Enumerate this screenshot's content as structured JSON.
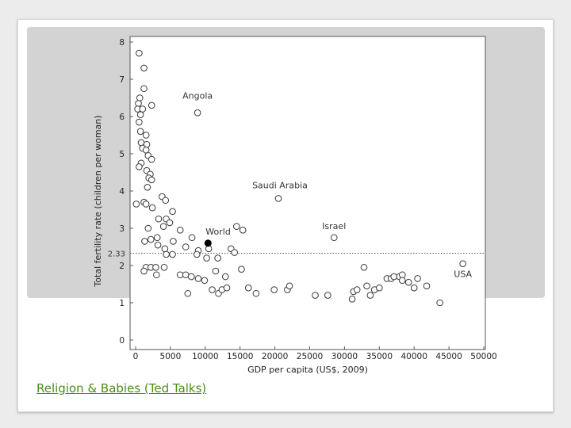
{
  "slide": {
    "link_text": "Religion & Babies (Ted Talks)"
  },
  "colors": {
    "background": "#ececec",
    "slide": "#ffffff",
    "shade": "#d3d3d3",
    "link": "#4a8c1c",
    "point_stroke": "#3a3a3a",
    "world_point": "#000000",
    "reference_line": "#555555"
  },
  "chart_data": {
    "type": "scatter",
    "title": "",
    "xlabel": "GDP per capita (US$, 2009)",
    "ylabel": "Total fertility rate (children per woman)",
    "xlim": [
      0,
      50000
    ],
    "ylim": [
      0,
      8
    ],
    "x_ticks": [
      0,
      5000,
      10000,
      15000,
      20000,
      25000,
      30000,
      35000,
      40000,
      45000,
      50000
    ],
    "y_ticks": [
      0,
      1,
      2,
      3,
      4,
      5,
      6,
      7,
      8
    ],
    "grid": false,
    "reference_line": {
      "y": 2.33,
      "label": "2.33",
      "style": "dotted"
    },
    "labeled_points": [
      {
        "label": "Angola",
        "x": 8900,
        "y": 6.1
      },
      {
        "label": "Saudi Arabia",
        "x": 20500,
        "y": 3.8
      },
      {
        "label": "Israel",
        "x": 28500,
        "y": 2.75
      },
      {
        "label": "USA",
        "x": 47000,
        "y": 2.05
      },
      {
        "label": "World",
        "x": 10400,
        "y": 2.6,
        "highlight": true
      }
    ],
    "points": [
      [
        500,
        7.7
      ],
      [
        1200,
        7.3
      ],
      [
        1200,
        6.75
      ],
      [
        600,
        6.5
      ],
      [
        400,
        6.35
      ],
      [
        2300,
        6.3
      ],
      [
        300,
        6.2
      ],
      [
        1000,
        6.2
      ],
      [
        700,
        6.05
      ],
      [
        500,
        5.85
      ],
      [
        700,
        5.6
      ],
      [
        1500,
        5.5
      ],
      [
        800,
        5.3
      ],
      [
        1600,
        5.25
      ],
      [
        1000,
        5.15
      ],
      [
        1500,
        5.1
      ],
      [
        1800,
        4.95
      ],
      [
        2300,
        4.85
      ],
      [
        800,
        4.75
      ],
      [
        500,
        4.65
      ],
      [
        1600,
        4.55
      ],
      [
        2100,
        4.45
      ],
      [
        1900,
        4.35
      ],
      [
        2300,
        4.3
      ],
      [
        1700,
        4.1
      ],
      [
        3800,
        3.85
      ],
      [
        4300,
        3.75
      ],
      [
        1200,
        3.7
      ],
      [
        100,
        3.65
      ],
      [
        1500,
        3.65
      ],
      [
        2400,
        3.55
      ],
      [
        5300,
        3.45
      ],
      [
        3300,
        3.25
      ],
      [
        4400,
        3.25
      ],
      [
        4900,
        3.15
      ],
      [
        4000,
        3.05
      ],
      [
        1800,
        3.0
      ],
      [
        6400,
        2.95
      ],
      [
        3100,
        2.75
      ],
      [
        2200,
        2.7
      ],
      [
        8100,
        2.75
      ],
      [
        1300,
        2.65
      ],
      [
        3200,
        2.55
      ],
      [
        5400,
        2.65
      ],
      [
        7200,
        2.5
      ],
      [
        4200,
        2.45
      ],
      [
        9000,
        2.4
      ],
      [
        10500,
        2.45
      ],
      [
        13700,
        2.45
      ],
      [
        14500,
        3.05
      ],
      [
        15400,
        2.95
      ],
      [
        4400,
        2.3
      ],
      [
        5300,
        2.3
      ],
      [
        8800,
        2.3
      ],
      [
        10200,
        2.2
      ],
      [
        11800,
        2.2
      ],
      [
        14200,
        2.35
      ],
      [
        1500,
        1.95
      ],
      [
        2200,
        1.95
      ],
      [
        2900,
        1.95
      ],
      [
        4100,
        1.95
      ],
      [
        1200,
        1.85
      ],
      [
        3000,
        1.75
      ],
      [
        6400,
        1.75
      ],
      [
        7200,
        1.75
      ],
      [
        8000,
        1.7
      ],
      [
        9000,
        1.65
      ],
      [
        9900,
        1.6
      ],
      [
        11500,
        1.85
      ],
      [
        12900,
        1.7
      ],
      [
        15200,
        1.9
      ],
      [
        7500,
        1.25
      ],
      [
        11000,
        1.35
      ],
      [
        11900,
        1.25
      ],
      [
        12400,
        1.35
      ],
      [
        13100,
        1.4
      ],
      [
        16200,
        1.4
      ],
      [
        17300,
        1.25
      ],
      [
        19900,
        1.35
      ],
      [
        21800,
        1.35
      ],
      [
        22100,
        1.45
      ],
      [
        25800,
        1.2
      ],
      [
        27600,
        1.2
      ],
      [
        31100,
        1.1
      ],
      [
        31300,
        1.3
      ],
      [
        31800,
        1.35
      ],
      [
        32800,
        1.95
      ],
      [
        33200,
        1.45
      ],
      [
        33700,
        1.2
      ],
      [
        34300,
        1.35
      ],
      [
        35000,
        1.4
      ],
      [
        36100,
        1.65
      ],
      [
        36700,
        1.65
      ],
      [
        37100,
        1.7
      ],
      [
        37900,
        1.7
      ],
      [
        38300,
        1.75
      ],
      [
        38300,
        1.6
      ],
      [
        39200,
        1.55
      ],
      [
        40000,
        1.4
      ],
      [
        40500,
        1.65
      ],
      [
        41800,
        1.45
      ],
      [
        43700,
        1.0
      ]
    ]
  }
}
